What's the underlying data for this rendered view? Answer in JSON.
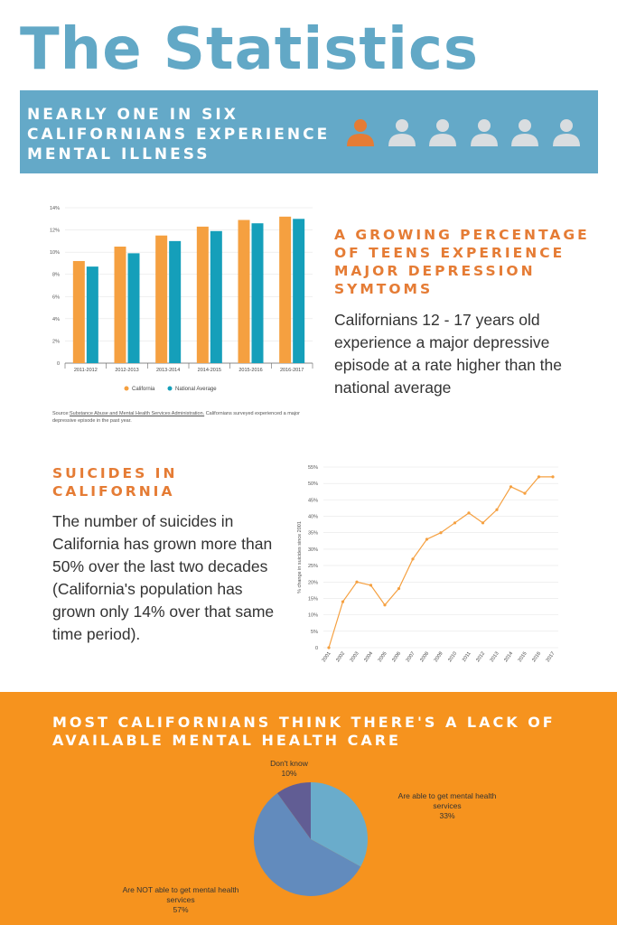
{
  "page": {
    "title": "The Statistics"
  },
  "banner": {
    "text": "NEARLY ONE IN SIX CALIFORNIANS EXPERIENCE MENTAL ILLNESS",
    "people": [
      {
        "icon": "person-icon",
        "highlighted": true
      },
      {
        "icon": "person-icon",
        "highlighted": false
      },
      {
        "icon": "person-icon",
        "highlighted": false
      },
      {
        "icon": "person-icon",
        "highlighted": false
      },
      {
        "icon": "person-icon",
        "highlighted": false
      },
      {
        "icon": "person-icon",
        "highlighted": false
      }
    ],
    "colors": {
      "highlight": "#e57c35",
      "normal": "#d9dde0"
    }
  },
  "section_teens": {
    "heading": "A GROWING PERCENTAGE OF TEENS EXPERIENCE MAJOR DEPRESSION SYMTOMS",
    "body": "Californians 12 - 17 years old experience a major depressive episode at a rate higher than the national average",
    "source_label": "Source:",
    "source_link": "Substance Abuse and Mental Health Services Administration.",
    "source_text": " Californians surveyed experienced a major depressive episode in the past year."
  },
  "section_suicides": {
    "heading": "SUICIDES IN CALIFORNIA",
    "body": "The number of suicides in California has grown more than 50% over the last two decades (California's population has grown only 14% over that same time period)."
  },
  "section_care": {
    "heading": "MOST CALIFORNIANS THINK THERE'S A LACK OF AVAILABLE MENTAL HEALTH CARE"
  },
  "chart_data": [
    {
      "type": "bar",
      "title": "",
      "xlabel": "",
      "ylabel": "",
      "categories": [
        "2011-2012",
        "2012-2013",
        "2013-2014",
        "2014-2015",
        "2015-2016",
        "2016-2017"
      ],
      "series": [
        {
          "name": "California",
          "color": "#f5a040",
          "values": [
            9.2,
            10.5,
            11.5,
            12.3,
            12.9,
            13.2
          ]
        },
        {
          "name": "National Average",
          "color": "#159fba",
          "values": [
            8.7,
            9.9,
            11.0,
            11.9,
            12.6,
            13.0
          ]
        }
      ],
      "ylim": [
        0,
        14
      ],
      "yticks": [
        "0",
        "2%",
        "4%",
        "6%",
        "8%",
        "10%",
        "12%",
        "14%"
      ],
      "grid": true,
      "legend": "bottom"
    },
    {
      "type": "line",
      "title": "",
      "xlabel": "",
      "ylabel": "% change in suicides since 2001",
      "x": [
        "2001",
        "2002",
        "2003",
        "2004",
        "2005",
        "2006",
        "2007",
        "2008",
        "2009",
        "2010",
        "2011",
        "2012",
        "2013",
        "2014",
        "2015",
        "2016",
        "2017"
      ],
      "series": [
        {
          "color": "#f5a040",
          "values": [
            0,
            14,
            20,
            19,
            13,
            18,
            27,
            33,
            35,
            38,
            41,
            38,
            42,
            49,
            47,
            52,
            52
          ]
        }
      ],
      "ylim": [
        0,
        55
      ],
      "yticks": [
        "0",
        "5%",
        "10%",
        "15%",
        "20%",
        "25%",
        "30%",
        "35%",
        "40%",
        "45%",
        "50%",
        "55%"
      ],
      "grid": true
    },
    {
      "type": "pie",
      "title": "",
      "slices": [
        {
          "label": "Are able to get mental health services",
          "pct": "33%",
          "value": 33,
          "color": "#6aaccb"
        },
        {
          "label": "Are NOT able to get mental health services",
          "pct": "57%",
          "value": 57,
          "color": "#628bbd"
        },
        {
          "label": "Don't know",
          "pct": "10%",
          "value": 10,
          "color": "#615d94"
        }
      ]
    }
  ]
}
